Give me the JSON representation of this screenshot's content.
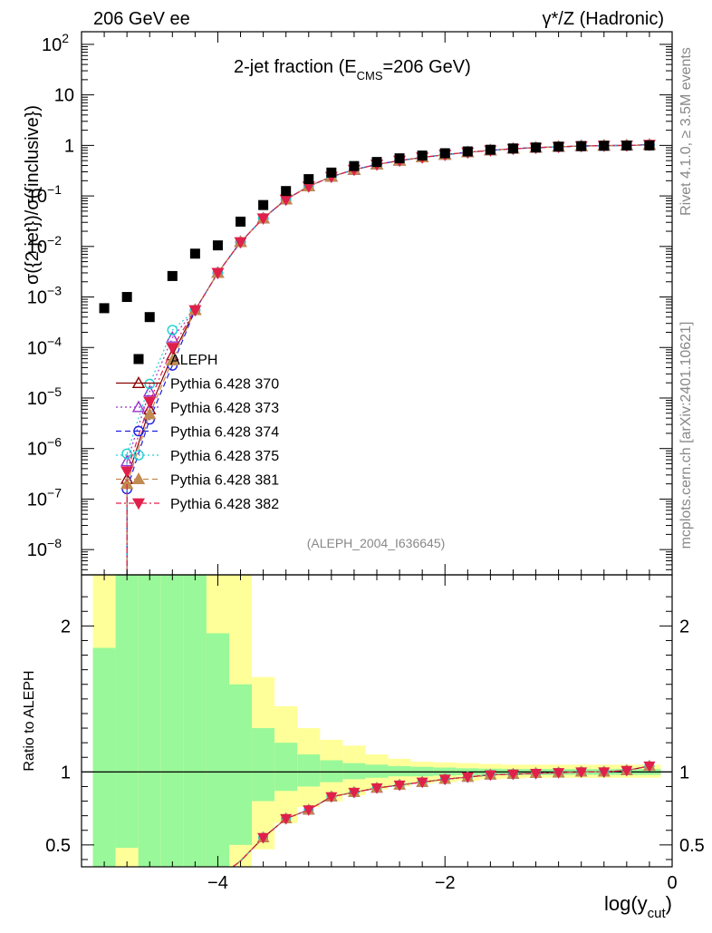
{
  "header": {
    "left": "206 GeV ee",
    "right": "γ*/Z (Hadronic)"
  },
  "side_labels": {
    "rivet": "Rivet 4.1.0, ≥ 3.5M events",
    "mcplots": "mcplots.cern.ch [arXiv:2401.10621]"
  },
  "chart_data": {
    "type": "scatter",
    "title_main": "2-jet fraction (E",
    "title_sub": "CMS",
    "title_tail": "=206 GeV)",
    "analysis_tag": "(ALEPH_2004_I636645)",
    "xlabel": "log(y",
    "xlabel_sub": "cut",
    "xlabel_tail": ")",
    "ylabel": "σ({2 jet})/σ({inclusive})",
    "ratio_ylabel": "Ratio to ALEPH",
    "xlim": [
      -5.2,
      0.0
    ],
    "ylim_log": [
      -8.5,
      2.25
    ],
    "ratio_ylim": [
      0.35,
      2.35
    ],
    "x_ticks": [
      -4,
      -2,
      0
    ],
    "x_tick_labels": [
      "−4",
      "−2",
      "0"
    ],
    "y_tick_labels": [
      {
        "exp": 2,
        "label": "10",
        "sup": "2"
      },
      {
        "exp": 1,
        "label": "10",
        "sup": ""
      },
      {
        "exp": 0,
        "label": "1",
        "sup": ""
      },
      {
        "exp": -1,
        "label": "10",
        "sup": "−1"
      },
      {
        "exp": -2,
        "label": "10",
        "sup": "−2"
      },
      {
        "exp": -3,
        "label": "10",
        "sup": "−3"
      },
      {
        "exp": -4,
        "label": "10",
        "sup": "−4"
      },
      {
        "exp": -5,
        "label": "10",
        "sup": "−5"
      },
      {
        "exp": -6,
        "label": "10",
        "sup": "−6"
      },
      {
        "exp": -7,
        "label": "10",
        "sup": "−7"
      },
      {
        "exp": -8,
        "label": "10",
        "sup": "−8"
      }
    ],
    "ratio_ticks": [
      0.5,
      1,
      2
    ],
    "ratio_tick_labels": [
      "0.5",
      "1",
      "2"
    ],
    "data_series": {
      "name": "ALEPH",
      "x": [
        -5.0,
        -4.8,
        -4.6,
        -4.4,
        -4.2,
        -4.0,
        -3.8,
        -3.6,
        -3.4,
        -3.2,
        -3.0,
        -2.8,
        -2.6,
        -2.4,
        -2.2,
        -2.0,
        -1.8,
        -1.6,
        -1.4,
        -1.2,
        -1.0,
        -0.8,
        -0.6,
        -0.4,
        -0.2
      ],
      "y": [
        0.0006,
        0.001,
        0.0004,
        0.0026,
        0.0072,
        0.0105,
        0.031,
        0.066,
        0.125,
        0.215,
        0.29,
        0.39,
        0.47,
        0.555,
        0.63,
        0.7,
        0.76,
        0.82,
        0.87,
        0.91,
        0.945,
        0.97,
        0.985,
        0.995,
        1.0
      ]
    },
    "mc_x": [
      -4.8,
      -4.6,
      -4.4,
      -4.2,
      -4.0,
      -3.8,
      -3.6,
      -3.4,
      -3.2,
      -3.0,
      -2.8,
      -2.6,
      -2.4,
      -2.2,
      -2.0,
      -1.8,
      -1.6,
      -1.4,
      -1.2,
      -1.0,
      -0.8,
      -0.6,
      -0.4,
      -0.2
    ],
    "mc_y": [
      2.5e-07,
      6e-06,
      7e-05,
      0.00055,
      0.003,
      0.0122,
      0.036,
      0.085,
      0.155,
      0.24,
      0.33,
      0.42,
      0.5,
      0.58,
      0.655,
      0.73,
      0.8,
      0.86,
      0.9,
      0.94,
      0.97,
      0.99,
      1.0,
      1.03
    ],
    "mc_ratio": [
      null,
      null,
      null,
      null,
      null,
      0.39,
      0.55,
      0.68,
      0.74,
      0.83,
      0.86,
      0.89,
      0.91,
      0.93,
      0.95,
      0.965,
      0.98,
      0.985,
      0.99,
      0.995,
      1.0,
      1.0,
      1.01,
      1.04
    ],
    "mc_series": [
      {
        "name": "Pythia 6.428 370",
        "color": "#8b0000",
        "marker": "triangle-open",
        "dash": ""
      },
      {
        "name": "Pythia 6.428 373",
        "color": "#9932cc",
        "marker": "triangle-open",
        "dash": "2,3"
      },
      {
        "name": "Pythia 6.428 374",
        "color": "#1e1ee6",
        "marker": "circle-open",
        "dash": "6,4"
      },
      {
        "name": "Pythia 6.428 375",
        "color": "#20d0d0",
        "marker": "circle-open",
        "dash": "2,3"
      },
      {
        "name": "Pythia 6.428 381",
        "color": "#c08a50",
        "marker": "triangle-filled",
        "dash": "6,4"
      },
      {
        "name": "Pythia 6.428 382",
        "color": "#e0204a",
        "marker": "triangle-down-filled",
        "dash": "6,3,2,3"
      }
    ],
    "uncertainty_bands": {
      "bin_edges": [
        -5.1,
        -4.9,
        -4.7,
        -4.5,
        -4.3,
        -4.1,
        -3.9,
        -3.7,
        -3.5,
        -3.3,
        -3.1,
        -2.9,
        -2.7,
        -2.5,
        -2.3,
        -2.1,
        -1.9,
        -1.7,
        -1.5,
        -1.3,
        -1.1,
        -0.9,
        -0.7,
        -0.5,
        -0.3,
        -0.1
      ],
      "green_upper": [
        1.85,
        2.4,
        2.4,
        2.4,
        2.4,
        1.95,
        1.6,
        1.3,
        1.2,
        1.12,
        1.08,
        1.06,
        1.05,
        1.04,
        1.035,
        1.03,
        1.025,
        1.022,
        1.02,
        1.02,
        1.02,
        1.02,
        1.02,
        1.02,
        1.02
      ],
      "green_lower": [
        0.3,
        0.48,
        0.3,
        0.3,
        0.3,
        0.3,
        0.5,
        0.8,
        0.87,
        0.9,
        0.93,
        0.95,
        0.96,
        0.97,
        0.97,
        0.975,
        0.978,
        0.98,
        0.98,
        0.98,
        0.98,
        0.98,
        0.98,
        0.98,
        0.98
      ],
      "yellow_upper": [
        2.4,
        2.4,
        2.4,
        2.4,
        2.4,
        2.4,
        2.4,
        1.65,
        1.45,
        1.3,
        1.22,
        1.18,
        1.12,
        1.09,
        1.07,
        1.065,
        1.06,
        1.055,
        1.05,
        1.05,
        1.05,
        1.05,
        1.05,
        1.05,
        1.05
      ],
      "yellow_lower": [
        0.3,
        0.3,
        0.3,
        0.3,
        0.3,
        0.3,
        0.3,
        0.47,
        0.65,
        0.76,
        0.8,
        0.84,
        0.88,
        0.9,
        0.92,
        0.93,
        0.94,
        0.95,
        0.955,
        0.96,
        0.96,
        0.96,
        0.96,
        0.96,
        0.96
      ]
    }
  },
  "colors": {
    "band_green": "#99f899",
    "band_yellow": "#ffff99",
    "data_marker": "#000000",
    "side_label": "#888888",
    "tag": "#888888"
  }
}
